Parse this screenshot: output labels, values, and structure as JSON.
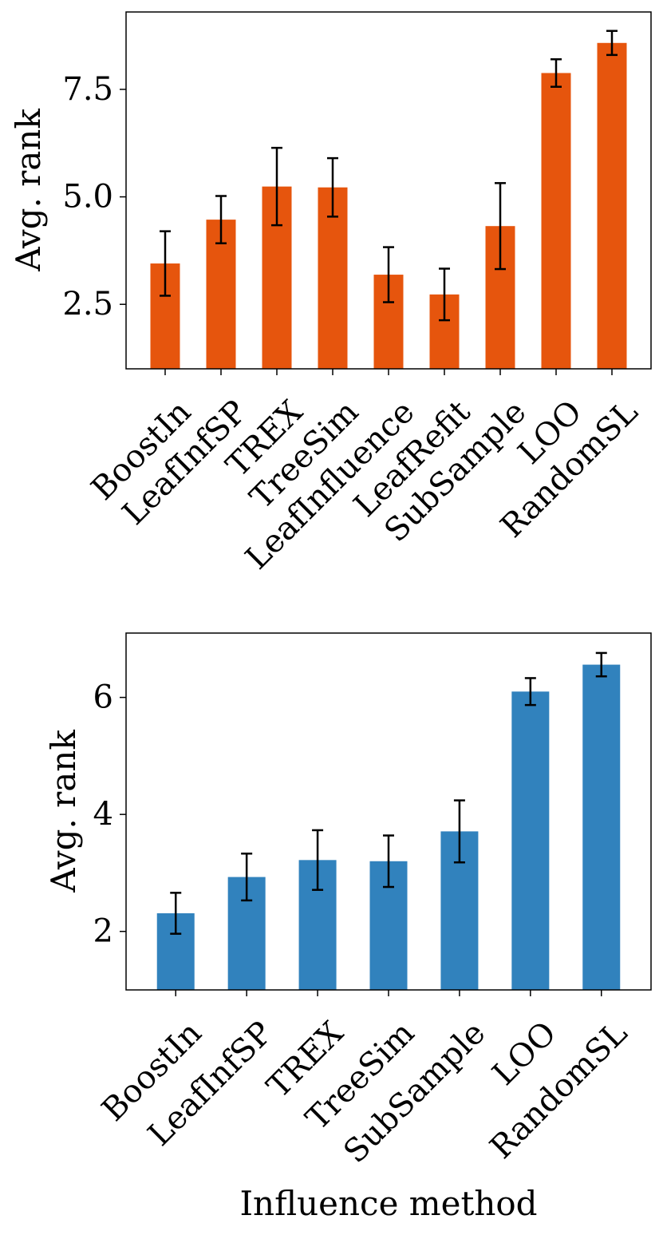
{
  "chart_data": [
    {
      "type": "bar",
      "title": "",
      "xlabel": "",
      "ylabel": "Avg. rank",
      "color": "#e6550d",
      "categories": [
        "BoostIn",
        "LeafInfSP",
        "TREX",
        "TreeSim",
        "LeafInfluence",
        "LeafRefit",
        "SubSample",
        "LOO",
        "RandomSL"
      ],
      "values": [
        3.45,
        4.47,
        5.24,
        5.22,
        3.19,
        2.73,
        4.32,
        7.88,
        8.58
      ],
      "errors": [
        0.75,
        0.55,
        0.9,
        0.68,
        0.64,
        0.6,
        1.0,
        0.32,
        0.28
      ],
      "ylim": [
        1.0,
        9.3
      ],
      "yticks": [
        2.5,
        5.0,
        7.5
      ],
      "ytick_labels": [
        "2.5",
        "5.0",
        "7.5"
      ],
      "grid": false,
      "legend": "none"
    },
    {
      "type": "bar",
      "title": "",
      "xlabel": "Influence method",
      "ylabel": "Avg. rank",
      "color": "#3182bd",
      "categories": [
        "BoostIn",
        "LeafInfSP",
        "TREX",
        "TreeSim",
        "SubSample",
        "LOO",
        "RandomSL"
      ],
      "values": [
        2.31,
        2.93,
        3.22,
        3.2,
        3.71,
        6.1,
        6.56
      ],
      "errors": [
        0.35,
        0.4,
        0.51,
        0.44,
        0.53,
        0.23,
        0.2
      ],
      "ylim": [
        1.0,
        7.1
      ],
      "yticks": [
        2,
        4,
        6
      ],
      "ytick_labels": [
        "2",
        "4",
        "6"
      ],
      "grid": false,
      "legend": "none"
    }
  ]
}
